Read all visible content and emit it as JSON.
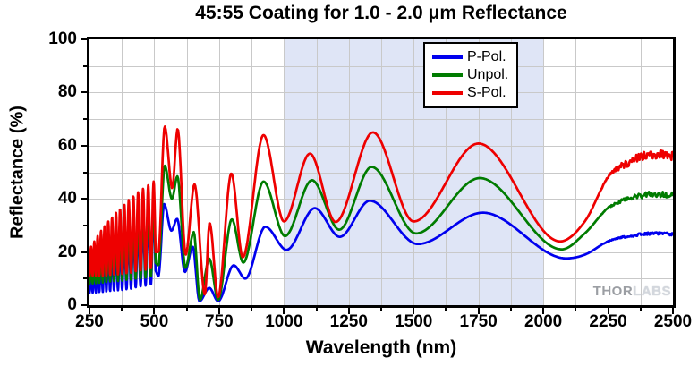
{
  "watermark": {
    "thor": "THOR",
    "labs": "LABS"
  },
  "chart_data": {
    "type": "line",
    "title": "45:55 Coating for 1.0 - 2.0 μm Reflectance",
    "xlabel": "Wavelength (nm)",
    "ylabel": "Reflectance (%)",
    "xlim": [
      250,
      2500
    ],
    "ylim": [
      0,
      100
    ],
    "x_major_ticks": [
      250,
      500,
      750,
      1000,
      1250,
      1500,
      1750,
      2000,
      2250,
      2500
    ],
    "x_minor_step": 125,
    "y_major_ticks": [
      0,
      20,
      40,
      60,
      80,
      100
    ],
    "y_minor_step": 10,
    "grid": true,
    "grid_color": "#c9c9c9",
    "shaded_band": {
      "x_start": 1000,
      "x_end": 2000,
      "color": "#dfe5f6"
    },
    "legend": {
      "position": "top-center",
      "entries": [
        "P-Pol.",
        "Unpol.",
        "S-Pol."
      ]
    },
    "noise": {
      "x_start": 2210,
      "ramp_nm": 140
    },
    "series": [
      {
        "name": "P-Pol.",
        "color": "#0000ee",
        "noise_amplitude": 0.5,
        "oscillation": {
          "x_start": 250,
          "x_end": 505,
          "period_nm_start": 12,
          "period_growth": 0.032,
          "envelope": [
            [
              250,
              14,
              4.5
            ],
            [
              300,
              19.5,
              5
            ],
            [
              350,
              23.5,
              5.5
            ],
            [
              400,
              27,
              6
            ],
            [
              450,
              31,
              7
            ],
            [
              505,
              36,
              8
            ]
          ]
        },
        "points": [
          [
            505,
            13
          ],
          [
            516,
            11
          ],
          [
            538,
            38
          ],
          [
            566,
            28
          ],
          [
            588,
            32.5
          ],
          [
            618,
            12.5
          ],
          [
            648,
            22
          ],
          [
            674,
            1.5
          ],
          [
            712,
            6.5
          ],
          [
            746,
            1.5
          ],
          [
            806,
            15
          ],
          [
            851,
            10
          ],
          [
            928,
            29.5
          ],
          [
            1010,
            20.8
          ],
          [
            1119,
            36.5
          ],
          [
            1215,
            25.7
          ],
          [
            1331,
            39.3
          ],
          [
            1516,
            23
          ],
          [
            1767,
            34.8
          ],
          [
            2088,
            17.6
          ],
          [
            2160,
            19
          ],
          [
            2250,
            24
          ],
          [
            2350,
            26.3
          ],
          [
            2440,
            27
          ],
          [
            2500,
            26.6
          ]
        ]
      },
      {
        "name": "Unpol.",
        "color": "#007c00",
        "noise_amplitude": 1.1,
        "oscillation": {
          "x_start": 250,
          "x_end": 505,
          "period_nm_start": 12,
          "period_growth": 0.032,
          "envelope": [
            [
              250,
              17,
              8
            ],
            [
              300,
              25,
              8.5
            ],
            [
              350,
              29,
              9
            ],
            [
              400,
              33,
              9.5
            ],
            [
              450,
              36.5,
              10
            ],
            [
              505,
              40,
              11
            ]
          ]
        },
        "points": [
          [
            505,
            16
          ],
          [
            516,
            15
          ],
          [
            540,
            52.5
          ],
          [
            568,
            40
          ],
          [
            589,
            48.5
          ],
          [
            620,
            14
          ],
          [
            652,
            27.5
          ],
          [
            676,
            2
          ],
          [
            712,
            17.5
          ],
          [
            746,
            2
          ],
          [
            799,
            32.3
          ],
          [
            843,
            16
          ],
          [
            921,
            46.5
          ],
          [
            1004,
            26
          ],
          [
            1108,
            47
          ],
          [
            1213,
            28.4
          ],
          [
            1338,
            52
          ],
          [
            1509,
            27
          ],
          [
            1755,
            47.8
          ],
          [
            2071,
            21
          ],
          [
            2160,
            27
          ],
          [
            2250,
            36.5
          ],
          [
            2350,
            40.5
          ],
          [
            2450,
            41.8
          ],
          [
            2500,
            41.4
          ]
        ]
      },
      {
        "name": "S-Pol.",
        "color": "#ee0000",
        "noise_amplitude": 1.7,
        "oscillation": {
          "x_start": 250,
          "x_end": 505,
          "period_nm_start": 12,
          "period_growth": 0.032,
          "envelope": [
            [
              250,
              21,
              11
            ],
            [
              300,
              29,
              11
            ],
            [
              350,
              34.5,
              11.5
            ],
            [
              400,
              39.5,
              12
            ],
            [
              450,
              43.5,
              13
            ],
            [
              505,
              47,
              14
            ]
          ]
        },
        "points": [
          [
            505,
            20
          ],
          [
            516,
            20
          ],
          [
            540,
            67.3
          ],
          [
            569,
            44
          ],
          [
            590,
            66.3
          ],
          [
            621,
            19
          ],
          [
            655,
            45.5
          ],
          [
            695,
            4
          ],
          [
            713,
            31
          ],
          [
            746,
            3
          ],
          [
            797,
            49.5
          ],
          [
            841,
            18
          ],
          [
            921,
            64
          ],
          [
            1000,
            31.5
          ],
          [
            1100,
            57
          ],
          [
            1199,
            31.3
          ],
          [
            1343,
            65
          ],
          [
            1500,
            31.5
          ],
          [
            1750,
            60.8
          ],
          [
            2065,
            24
          ],
          [
            2160,
            31.5
          ],
          [
            2250,
            48
          ],
          [
            2350,
            54.5
          ],
          [
            2430,
            56.5
          ],
          [
            2500,
            56.2
          ]
        ]
      }
    ]
  }
}
